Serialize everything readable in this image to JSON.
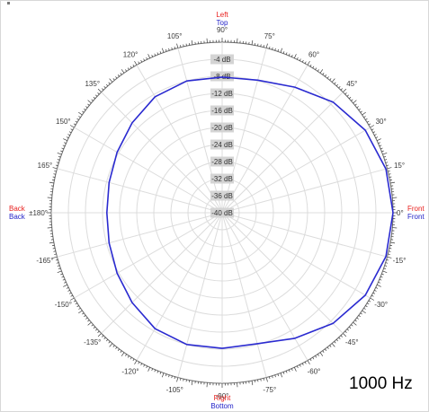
{
  "chart_data": {
    "type": "polar-line",
    "frequency_label": "1000 Hz",
    "direction_labels": {
      "top": [
        "Left",
        "Top"
      ],
      "bottom": [
        "Right",
        "Bottom"
      ],
      "left": [
        "Back",
        "Back"
      ],
      "right": [
        "Front",
        "Front"
      ]
    },
    "direction_label_colors": [
      "#e8201e",
      "#2323c8"
    ],
    "series_color": "#2a2ad0",
    "radial_unit": "dB",
    "radial_range": [
      -40,
      0
    ],
    "radial_ticks": [
      "-4 dB",
      "-8 dB",
      "-12 dB",
      "-16 dB",
      "-20 dB",
      "-24 dB",
      "-28 dB",
      "-32 dB",
      "-36 dB",
      "-40 dB"
    ],
    "angular_ticks": [
      {
        "deg": 0,
        "label": "0°"
      },
      {
        "deg": 15,
        "label": "15°"
      },
      {
        "deg": 30,
        "label": "30°"
      },
      {
        "deg": 45,
        "label": "45°"
      },
      {
        "deg": 60,
        "label": "60°"
      },
      {
        "deg": 75,
        "label": "75°"
      },
      {
        "deg": 90,
        "label": "90°"
      },
      {
        "deg": 105,
        "label": "105°"
      },
      {
        "deg": 120,
        "label": "120°"
      },
      {
        "deg": 135,
        "label": "135°"
      },
      {
        "deg": 150,
        "label": "150°"
      },
      {
        "deg": 165,
        "label": "165°"
      },
      {
        "deg": 180,
        "label": "±180°"
      },
      {
        "deg": -165,
        "label": "-165°"
      },
      {
        "deg": -150,
        "label": "-150°"
      },
      {
        "deg": -135,
        "label": "-135°"
      },
      {
        "deg": -120,
        "label": "-120°"
      },
      {
        "deg": -105,
        "label": "-105°"
      },
      {
        "deg": -90,
        "label": "-90°"
      },
      {
        "deg": -75,
        "label": "-75°"
      },
      {
        "deg": -60,
        "label": "-60°"
      },
      {
        "deg": -45,
        "label": "-45°"
      },
      {
        "deg": -30,
        "label": "-30°"
      },
      {
        "deg": -15,
        "label": "-15°"
      }
    ],
    "grid": true,
    "series": [
      {
        "angles": [
          0,
          15,
          30,
          45,
          60,
          75,
          90,
          105,
          120,
          135,
          150,
          165,
          180,
          -165,
          -150,
          -135,
          -120,
          -105,
          -90,
          -75,
          -60,
          -45,
          -30,
          -15,
          0
        ],
        "values_db": [
          0,
          -0.3,
          -1.3,
          -3.3,
          -6.0,
          -7.8,
          -8.2,
          -8.0,
          -8.6,
          -10.2,
          -11.6,
          -12.6,
          -13.0,
          -12.6,
          -11.6,
          -10.2,
          -8.6,
          -8.0,
          -8.2,
          -8.2,
          -6.0,
          -3.3,
          -1.3,
          -0.3,
          0
        ]
      }
    ]
  }
}
